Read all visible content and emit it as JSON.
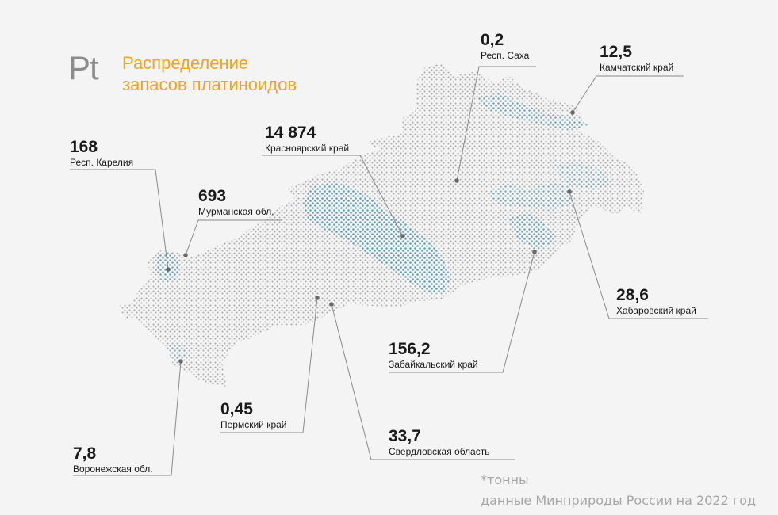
{
  "title": {
    "symbol": "Pt",
    "line1": "Распределение",
    "line2": "запасов платиноидов"
  },
  "colors": {
    "accent": "#f2a51a",
    "dot_gray": "#a9a9a9",
    "dot_blue": "#5e9db0",
    "line": "#8a8a8a"
  },
  "regions": [
    {
      "id": "sakha",
      "value": "0,2",
      "name": "Респ. Саха"
    },
    {
      "id": "kamchatka",
      "value": "12,5",
      "name": "Камчатский край"
    },
    {
      "id": "krasnoyarsk",
      "value": "14 874",
      "name": "Красноярский  край"
    },
    {
      "id": "karelia",
      "value": "168",
      "name": "Респ. Карелия"
    },
    {
      "id": "murmansk",
      "value": "693",
      "name": "Мурманская обл."
    },
    {
      "id": "khabarovsk",
      "value": "28,6",
      "name": "Хабаровский край"
    },
    {
      "id": "zabaikalsky",
      "value": "156,2",
      "name": "Забайкальский край"
    },
    {
      "id": "perm",
      "value": "0,45",
      "name": "Пермский край"
    },
    {
      "id": "sverdlovsk",
      "value": "33,7",
      "name": "Свердловская область"
    },
    {
      "id": "voronezh",
      "value": "7,8",
      "name": "Воронежская обл."
    }
  ],
  "footnote": {
    "units": "*тонны",
    "source": "данные Минприроды России на 2022 год"
  }
}
